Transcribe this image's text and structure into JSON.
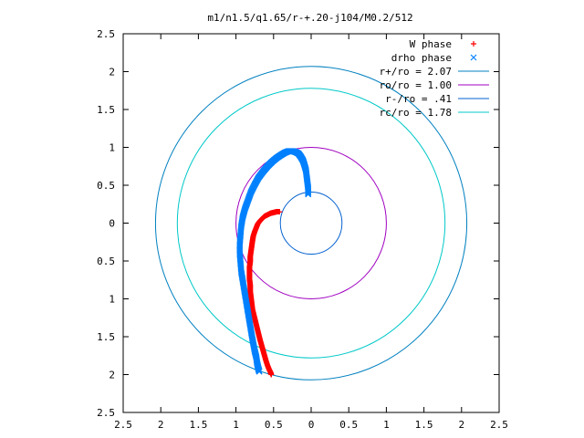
{
  "chart_data": {
    "type": "scatter",
    "title": "m1/n1.5/q1.65/r-+.20-j104/M0.2/512",
    "xlim": [
      -2.5,
      2.5
    ],
    "ylim": [
      -2.5,
      2.5
    ],
    "x_ticks": [
      {
        "value": -2.5,
        "label": "2.5"
      },
      {
        "value": -2,
        "label": "2"
      },
      {
        "value": -1.5,
        "label": "1.5"
      },
      {
        "value": -1,
        "label": "1"
      },
      {
        "value": -0.5,
        "label": "0.5"
      },
      {
        "value": 0,
        "label": "0"
      },
      {
        "value": 0.5,
        "label": "0.5"
      },
      {
        "value": 1,
        "label": "1"
      },
      {
        "value": 1.5,
        "label": "1.5"
      },
      {
        "value": 2,
        "label": "2"
      },
      {
        "value": 2.5,
        "label": "2.5"
      }
    ],
    "y_ticks": [
      {
        "value": 2.5,
        "label": "2.5"
      },
      {
        "value": 2,
        "label": "2"
      },
      {
        "value": 1.5,
        "label": "1.5"
      },
      {
        "value": 1,
        "label": "1"
      },
      {
        "value": 0.5,
        "label": "0.5"
      },
      {
        "value": 0,
        "label": "0"
      },
      {
        "value": -0.5,
        "label": "0.5"
      },
      {
        "value": -1,
        "label": "1"
      },
      {
        "value": -1.5,
        "label": "1.5"
      },
      {
        "value": -2,
        "label": "2"
      },
      {
        "value": -2.5,
        "label": "2.5"
      }
    ],
    "grid": false,
    "legend_position": "top-right",
    "circles": [
      {
        "name": "r+/ro = 2.07",
        "radius": 2.07,
        "color": "#0080c0"
      },
      {
        "name": "ro/ro = 1.00",
        "radius": 1.0,
        "color": "#a000c0"
      },
      {
        "name": "r-/ro = .41",
        "radius": 0.41,
        "color": "#0060d0"
      },
      {
        "name": "rc/ro = 1.78",
        "radius": 1.78,
        "color": "#00c8c8"
      }
    ],
    "series": [
      {
        "name": "W phase",
        "marker": "+",
        "color": "#ff0000",
        "x": [
          -0.42,
          -0.46,
          -0.5,
          -0.54,
          -0.58,
          -0.62,
          -0.65,
          -0.68,
          -0.71,
          -0.73,
          -0.75,
          -0.77,
          -0.78,
          -0.79,
          -0.8,
          -0.81,
          -0.81,
          -0.82,
          -0.82,
          -0.82,
          -0.81,
          -0.81,
          -0.8,
          -0.79,
          -0.78,
          -0.76,
          -0.74,
          -0.72,
          -0.7,
          -0.68,
          -0.66,
          -0.64,
          -0.62,
          -0.6,
          -0.58,
          -0.56,
          -0.54,
          -0.53
        ],
        "y": [
          0.15,
          0.15,
          0.14,
          0.13,
          0.11,
          0.09,
          0.06,
          0.03,
          -0.01,
          -0.06,
          -0.11,
          -0.17,
          -0.23,
          -0.3,
          -0.37,
          -0.44,
          -0.51,
          -0.58,
          -0.66,
          -0.74,
          -0.82,
          -0.9,
          -0.98,
          -1.06,
          -1.14,
          -1.22,
          -1.3,
          -1.38,
          -1.46,
          -1.54,
          -1.61,
          -1.68,
          -1.75,
          -1.82,
          -1.88,
          -1.93,
          -1.97,
          -2.0
        ]
      },
      {
        "name": "drho phase",
        "marker": "x",
        "color": "#0080ff",
        "x": [
          -0.04,
          -0.04,
          -0.05,
          -0.06,
          -0.07,
          -0.09,
          -0.11,
          -0.14,
          -0.17,
          -0.21,
          -0.25,
          -0.3,
          -0.35,
          -0.4,
          -0.46,
          -0.52,
          -0.58,
          -0.64,
          -0.7,
          -0.75,
          -0.8,
          -0.84,
          -0.88,
          -0.91,
          -0.93,
          -0.94,
          -0.95,
          -0.95,
          -0.94,
          -0.93,
          -0.91,
          -0.89,
          -0.87,
          -0.85,
          -0.83,
          -0.81,
          -0.79,
          -0.77,
          -0.75,
          -0.73,
          -0.72,
          -0.71,
          -0.7,
          -0.69
        ],
        "y": [
          0.38,
          0.46,
          0.54,
          0.62,
          0.7,
          0.77,
          0.83,
          0.88,
          0.92,
          0.94,
          0.95,
          0.95,
          0.93,
          0.9,
          0.86,
          0.81,
          0.75,
          0.68,
          0.6,
          0.51,
          0.41,
          0.3,
          0.19,
          0.08,
          -0.04,
          -0.16,
          -0.28,
          -0.4,
          -0.52,
          -0.64,
          -0.76,
          -0.88,
          -1.0,
          -1.12,
          -1.24,
          -1.36,
          -1.48,
          -1.59,
          -1.69,
          -1.77,
          -1.84,
          -1.89,
          -1.93,
          -1.96
        ]
      }
    ]
  }
}
